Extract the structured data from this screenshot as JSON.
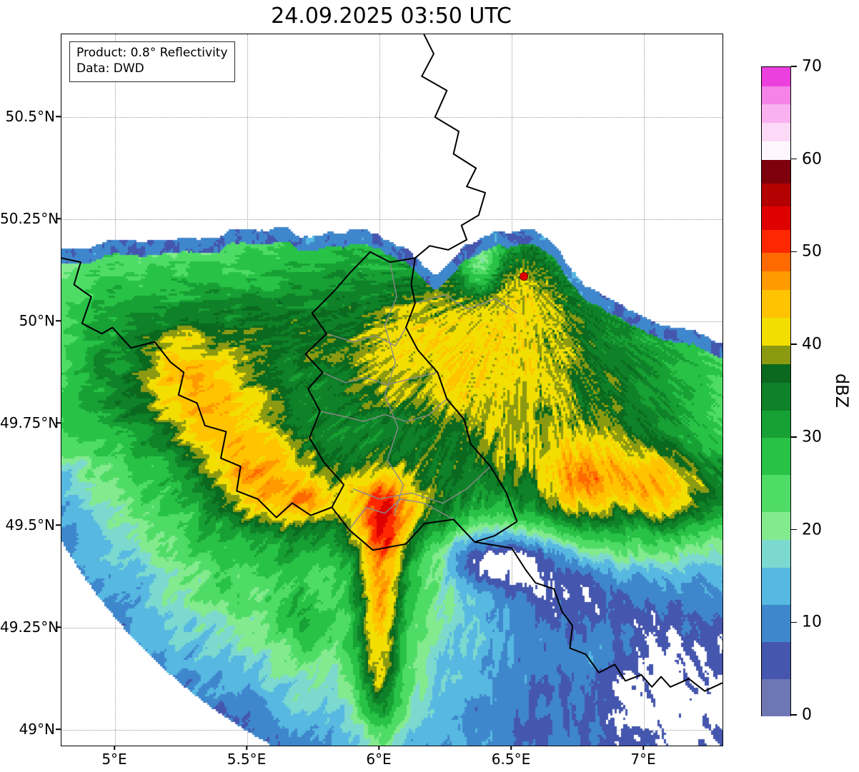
{
  "title": "24.09.2025 03:50 UTC",
  "info_box": {
    "line1": "Product: 0.8° Reflectivity",
    "line2": "Data: DWD"
  },
  "axes": {
    "x_ticks": [
      {
        "label": "5°E",
        "lon": 5.0
      },
      {
        "label": "5.5°E",
        "lon": 5.5
      },
      {
        "label": "6°E",
        "lon": 6.0
      },
      {
        "label": "6.5°E",
        "lon": 6.5
      },
      {
        "label": "7°E",
        "lon": 7.0
      }
    ],
    "y_ticks": [
      {
        "label": "50.5°N",
        "lat": 50.5
      },
      {
        "label": "50.25°N",
        "lat": 50.25
      },
      {
        "label": "50°N",
        "lat": 50.0
      },
      {
        "label": "49.75°N",
        "lat": 49.75
      },
      {
        "label": "49.5°N",
        "lat": 49.5
      },
      {
        "label": "49.25°N",
        "lat": 49.25
      },
      {
        "label": "49°N",
        "lat": 49.0
      }
    ]
  },
  "colorbar": {
    "label": "dBZ",
    "min": 0,
    "max": 70,
    "ticks": [
      0,
      10,
      20,
      30,
      40,
      50,
      60,
      70
    ],
    "segments": [
      {
        "from": 0,
        "to": 4,
        "color": "#6e76b4"
      },
      {
        "from": 4,
        "to": 8,
        "color": "#4456ae"
      },
      {
        "from": 8,
        "to": 12,
        "color": "#3f87cc"
      },
      {
        "from": 12,
        "to": 16,
        "color": "#57b8e2"
      },
      {
        "from": 16,
        "to": 19,
        "color": "#7bd9cf"
      },
      {
        "from": 19,
        "to": 22,
        "color": "#83ea8e"
      },
      {
        "from": 22,
        "to": 26,
        "color": "#4fdc66"
      },
      {
        "from": 26,
        "to": 30,
        "color": "#28c247"
      },
      {
        "from": 30,
        "to": 33,
        "color": "#17a033"
      },
      {
        "from": 33,
        "to": 36,
        "color": "#0f8128"
      },
      {
        "from": 36,
        "to": 38,
        "color": "#0a681f"
      },
      {
        "from": 38,
        "to": 40,
        "color": "#8c9a12"
      },
      {
        "from": 40,
        "to": 43,
        "color": "#f2de00"
      },
      {
        "from": 43,
        "to": 46,
        "color": "#ffc300"
      },
      {
        "from": 46,
        "to": 48,
        "color": "#ff9a00"
      },
      {
        "from": 48,
        "to": 50,
        "color": "#ff6a00"
      },
      {
        "from": 50,
        "to": 52.5,
        "color": "#fe2700"
      },
      {
        "from": 52.5,
        "to": 55,
        "color": "#df0000"
      },
      {
        "from": 55,
        "to": 57.5,
        "color": "#b40000"
      },
      {
        "from": 57.5,
        "to": 60,
        "color": "#7d000c"
      },
      {
        "from": 60,
        "to": 62,
        "color": "#fef6fd"
      },
      {
        "from": 62,
        "to": 64,
        "color": "#fcd9f6"
      },
      {
        "from": 64,
        "to": 66,
        "color": "#fab1ef"
      },
      {
        "from": 66,
        "to": 68,
        "color": "#f583e8"
      },
      {
        "from": 68,
        "to": 70,
        "color": "#ec40de"
      }
    ]
  },
  "radar": {
    "site_lon": 6.545,
    "site_lat": 50.11,
    "marker_color": "#e00000"
  },
  "radar_field": {
    "base_dbz": 14,
    "range_radius_px": 745,
    "north_edge": [
      [
        4.79,
        50.175
      ],
      [
        5.05,
        50.195
      ],
      [
        5.35,
        50.21
      ],
      [
        5.65,
        50.225
      ],
      [
        5.95,
        50.21
      ],
      [
        6.08,
        50.195
      ],
      [
        6.22,
        50.12
      ],
      [
        6.32,
        50.18
      ],
      [
        6.45,
        50.22
      ],
      [
        6.58,
        50.22
      ],
      [
        6.68,
        50.17
      ],
      [
        6.78,
        50.095
      ],
      [
        6.92,
        50.045
      ],
      [
        7.06,
        49.995
      ],
      [
        7.3,
        49.955
      ]
    ],
    "cell_order": "lon,lat,sigma_lon,sigma_lat,amp_dbz",
    "gaussian_cells": [
      [
        5.8,
        49.72,
        1.15,
        0.52,
        13
      ],
      [
        6.6,
        49.9,
        0.45,
        0.28,
        9
      ],
      [
        5.25,
        49.85,
        0.16,
        0.11,
        13
      ],
      [
        5.45,
        49.7,
        0.17,
        0.12,
        12
      ],
      [
        5.62,
        49.58,
        0.14,
        0.09,
        14
      ],
      [
        5.74,
        49.56,
        0.05,
        0.035,
        7
      ],
      [
        6.05,
        49.545,
        0.15,
        0.075,
        15
      ],
      [
        6.02,
        49.42,
        0.09,
        0.12,
        8
      ],
      [
        6.0,
        49.16,
        0.06,
        0.22,
        20
      ],
      [
        5.7,
        49.27,
        0.06,
        0.06,
        8
      ],
      [
        6.74,
        49.62,
        0.17,
        0.085,
        13
      ],
      [
        7.12,
        49.58,
        0.2,
        0.08,
        17
      ],
      [
        5.5,
        49.99,
        0.75,
        0.13,
        8
      ],
      [
        6.2,
        49.88,
        0.3,
        0.16,
        7
      ],
      [
        6.55,
        50.12,
        0.14,
        0.09,
        8
      ],
      [
        6.9,
        49.78,
        0.3,
        0.18,
        5
      ],
      [
        4.85,
        49.77,
        0.12,
        0.09,
        12
      ],
      [
        6.45,
        49.42,
        0.15,
        0.05,
        -22
      ],
      [
        6.7,
        49.33,
        0.26,
        0.07,
        -13
      ],
      [
        7.15,
        49.1,
        0.3,
        0.18,
        -16
      ],
      [
        6.5,
        49.08,
        0.2,
        0.12,
        -9
      ],
      [
        6.38,
        50.14,
        0.05,
        0.05,
        -14
      ]
    ]
  },
  "borders": {
    "country_color": "#000000",
    "admin_color": "#8a8a8a",
    "country": [
      [
        [
          6.168,
          50.703
        ],
        [
          6.205,
          50.655
        ],
        [
          6.16,
          50.6
        ],
        [
          6.255,
          50.565
        ],
        [
          6.21,
          50.5
        ],
        [
          6.3,
          50.465
        ],
        [
          6.28,
          50.41
        ],
        [
          6.365,
          50.375
        ],
        [
          6.33,
          50.33
        ],
        [
          6.4,
          50.315
        ],
        [
          6.375,
          50.26
        ],
        [
          6.31,
          50.235
        ],
        [
          6.33,
          50.2
        ],
        [
          6.26,
          50.175
        ],
        [
          6.19,
          50.185
        ],
        [
          6.135,
          50.155
        ]
      ],
      [
        [
          6.135,
          50.155
        ],
        [
          6.12,
          50.09
        ],
        [
          6.135,
          50.045
        ],
        [
          6.1,
          49.985
        ],
        [
          6.145,
          49.93
        ],
        [
          6.22,
          49.875
        ],
        [
          6.255,
          49.81
        ],
        [
          6.32,
          49.76
        ],
        [
          6.345,
          49.7
        ],
        [
          6.42,
          49.645
        ],
        [
          6.48,
          49.58
        ],
        [
          6.52,
          49.51
        ],
        [
          6.435,
          49.475
        ],
        [
          6.36,
          49.46
        ],
        [
          6.28,
          49.515
        ],
        [
          6.17,
          49.505
        ],
        [
          6.1,
          49.455
        ],
        [
          5.975,
          49.44
        ],
        [
          5.885,
          49.49
        ],
        [
          5.82,
          49.545
        ],
        [
          5.865,
          49.6
        ],
        [
          5.79,
          49.655
        ],
        [
          5.735,
          49.715
        ],
        [
          5.775,
          49.78
        ],
        [
          5.73,
          49.835
        ],
        [
          5.785,
          49.875
        ],
        [
          5.72,
          49.92
        ],
        [
          5.8,
          49.97
        ],
        [
          5.745,
          50.02
        ],
        [
          5.83,
          50.075
        ],
        [
          5.89,
          50.12
        ],
        [
          5.965,
          50.17
        ],
        [
          6.04,
          50.145
        ],
        [
          6.135,
          50.155
        ]
      ],
      [
        [
          4.797,
          50.155
        ],
        [
          4.87,
          50.145
        ],
        [
          4.845,
          50.09
        ],
        [
          4.91,
          50.06
        ],
        [
          4.875,
          49.995
        ],
        [
          4.95,
          49.97
        ],
        [
          4.99,
          49.985
        ],
        [
          5.06,
          49.935
        ],
        [
          5.15,
          49.95
        ],
        [
          5.21,
          49.9
        ],
        [
          5.26,
          49.875
        ],
        [
          5.24,
          49.82
        ],
        [
          5.31,
          49.8
        ],
        [
          5.34,
          49.745
        ],
        [
          5.42,
          49.73
        ],
        [
          5.4,
          49.665
        ],
        [
          5.475,
          49.645
        ],
        [
          5.46,
          49.585
        ],
        [
          5.54,
          49.565
        ],
        [
          5.61,
          49.52
        ],
        [
          5.67,
          49.555
        ],
        [
          5.74,
          49.525
        ],
        [
          5.82,
          49.545
        ]
      ],
      [
        [
          6.36,
          49.46
        ],
        [
          6.5,
          49.445
        ],
        [
          6.555,
          49.39
        ],
        [
          6.59,
          49.36
        ],
        [
          6.66,
          49.345
        ],
        [
          6.69,
          49.29
        ],
        [
          6.73,
          49.255
        ],
        [
          6.72,
          49.2
        ],
        [
          6.78,
          49.185
        ],
        [
          6.83,
          49.14
        ],
        [
          6.89,
          49.16
        ],
        [
          6.93,
          49.12
        ],
        [
          6.99,
          49.135
        ],
        [
          7.03,
          49.105
        ],
        [
          7.065,
          49.13
        ],
        [
          7.1,
          49.105
        ],
        [
          7.17,
          49.125
        ],
        [
          7.23,
          49.095
        ],
        [
          7.297,
          49.115
        ]
      ]
    ],
    "admin": [
      [
        [
          5.8,
          49.97
        ],
        [
          5.9,
          49.95
        ],
        [
          5.985,
          49.965
        ],
        [
          6.06,
          49.94
        ],
        [
          6.1,
          49.985
        ]
      ],
      [
        [
          5.785,
          49.875
        ],
        [
          5.87,
          49.85
        ],
        [
          5.95,
          49.862
        ],
        [
          6.03,
          49.845
        ],
        [
          6.12,
          49.86
        ],
        [
          6.22,
          49.875
        ]
      ],
      [
        [
          5.775,
          49.78
        ],
        [
          5.86,
          49.768
        ],
        [
          5.94,
          49.755
        ],
        [
          6.02,
          49.772
        ],
        [
          6.1,
          49.755
        ],
        [
          6.185,
          49.77
        ],
        [
          6.255,
          49.81
        ]
      ],
      [
        [
          5.885,
          49.49
        ],
        [
          5.95,
          49.545
        ],
        [
          6.02,
          49.53
        ],
        [
          6.08,
          49.565
        ],
        [
          6.17,
          49.555
        ],
        [
          6.28,
          49.515
        ]
      ],
      [
        [
          6.04,
          50.145
        ],
        [
          6.065,
          50.06
        ],
        [
          6.02,
          49.99
        ],
        [
          6.06,
          49.9
        ],
        [
          6.02,
          49.82
        ],
        [
          6.07,
          49.74
        ],
        [
          6.03,
          49.66
        ],
        [
          6.09,
          49.6
        ],
        [
          6.055,
          49.525
        ]
      ],
      [
        [
          6.135,
          50.045
        ],
        [
          6.25,
          50.065
        ],
        [
          6.33,
          50.03
        ],
        [
          6.44,
          50.055
        ],
        [
          6.52,
          50.02
        ]
      ],
      [
        [
          5.9,
          49.59
        ],
        [
          6.0,
          49.565
        ],
        [
          6.12,
          49.58
        ],
        [
          6.24,
          49.555
        ],
        [
          6.33,
          49.59
        ],
        [
          6.42,
          49.645
        ]
      ]
    ]
  }
}
